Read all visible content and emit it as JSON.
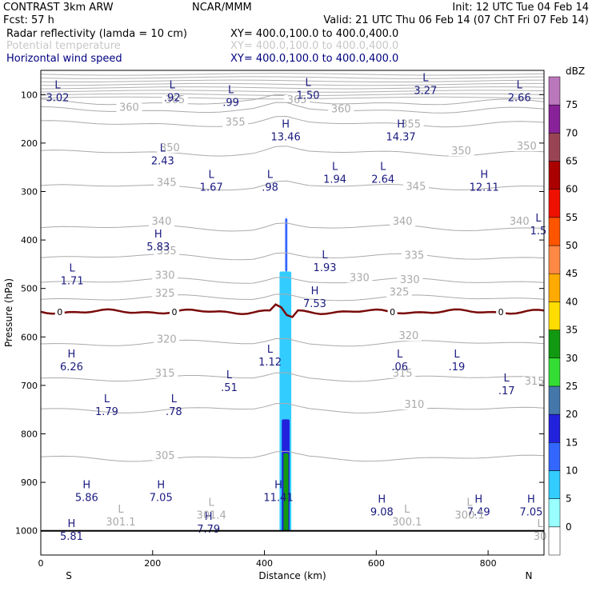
{
  "header": {
    "model": "CONTRAST  3km ARW",
    "org": "NCAR/MMM",
    "init": "Init: 12 UTC Tue 04 Feb 14",
    "fcst": "Fcst:   57 h",
    "valid": "Valid: 21 UTC Thu 06 Feb 14 (07 ChT Fri 07 Feb 14)"
  },
  "legend": [
    {
      "label": "Radar reflectivity (lamda = 10 cm)",
      "xy": "XY= 400.0,100.0 to 400.0,400.0",
      "color": "#000000"
    },
    {
      "label": "Potential temperature",
      "xy": "XY= 400.0,100.0 to 400.0,400.0",
      "color": "#c8c8c8"
    },
    {
      "label": "Horizontal wind speed",
      "xy": "XY= 400.0,100.0 to 400.0,400.0",
      "color": "#000080"
    }
  ],
  "chart_data": {
    "type": "heatmap",
    "xlabel": "Distance (km)",
    "ylabel": "Pressure (hPa)",
    "xlim": [
      0,
      900
    ],
    "ylim": [
      1050,
      50
    ],
    "x_ticks": [
      0,
      200,
      400,
      600,
      800
    ],
    "y_ticks": [
      100,
      200,
      300,
      400,
      500,
      600,
      700,
      800,
      900,
      1000
    ],
    "x_end_labels": {
      "left": "S",
      "right": "N"
    },
    "colorbar": {
      "title": "dBZ",
      "levels": [
        0,
        5,
        10,
        15,
        20,
        25,
        30,
        35,
        40,
        45,
        50,
        55,
        60,
        65,
        70,
        75
      ],
      "colors": [
        "#ffffff",
        "#99ffff",
        "#33ccff",
        "#3366ff",
        "#2222dd",
        "#4477aa",
        "#33dd33",
        "#119911",
        "#ffdd00",
        "#ffaa00",
        "#ff8844",
        "#ff5500",
        "#ee1100",
        "#aa0000",
        "#994455",
        "#882299",
        "#bb77bb"
      ]
    },
    "isentropes": [
      {
        "theta": 365,
        "p": 116,
        "labels": [
          {
            "x": 240,
            "p": 116
          },
          {
            "x": 458,
            "p": 116
          }
        ]
      },
      {
        "theta": 360,
        "p": 132,
        "labels": [
          {
            "x": 158,
            "p": 132
          },
          {
            "x": 537,
            "p": 135
          }
        ]
      },
      {
        "theta": 355,
        "p": 160,
        "labels": [
          {
            "x": 348,
            "p": 162
          },
          {
            "x": 662,
            "p": 166
          }
        ]
      },
      {
        "theta": 350,
        "p": 220,
        "labels": [
          {
            "x": 231,
            "p": 215
          },
          {
            "x": 752,
            "p": 222
          },
          {
            "x": 869,
            "p": 212
          }
        ]
      },
      {
        "theta": 345,
        "p": 290,
        "labels": [
          {
            "x": 225,
            "p": 287
          },
          {
            "x": 671,
            "p": 295
          }
        ]
      },
      {
        "theta": 340,
        "p": 375,
        "labels": [
          {
            "x": 216,
            "p": 367
          },
          {
            "x": 647,
            "p": 367
          },
          {
            "x": 856,
            "p": 367
          }
        ]
      },
      {
        "theta": 335,
        "p": 435,
        "labels": [
          {
            "x": 225,
            "p": 428
          },
          {
            "x": 668,
            "p": 437
          }
        ]
      },
      {
        "theta": 330,
        "p": 485,
        "labels": [
          {
            "x": 222,
            "p": 478
          },
          {
            "x": 570,
            "p": 483
          },
          {
            "x": 660,
            "p": 487
          }
        ]
      },
      {
        "theta": 325,
        "p": 520,
        "labels": [
          {
            "x": 222,
            "p": 515
          },
          {
            "x": 641,
            "p": 513
          }
        ]
      },
      {
        "theta": 320,
        "p": 613,
        "labels": [
          {
            "x": 225,
            "p": 610
          },
          {
            "x": 658,
            "p": 603
          }
        ]
      },
      {
        "theta": 315,
        "p": 685,
        "labels": [
          {
            "x": 222,
            "p": 680
          },
          {
            "x": 647,
            "p": 680
          },
          {
            "x": 883,
            "p": 697
          }
        ]
      },
      {
        "theta": 310,
        "p": 750,
        "labels": [
          {
            "x": 668,
            "p": 745
          }
        ]
      },
      {
        "theta": 305,
        "p": 850,
        "labels": [
          {
            "x": 222,
            "p": 850
          }
        ]
      }
    ],
    "freezing_level": {
      "label": "0",
      "p": 548,
      "label_x": [
        34,
        239,
        629,
        823
      ]
    },
    "reflectivity_cells": [
      {
        "x0": 427,
        "x1": 448,
        "p_top": 465,
        "p_bot": 1000,
        "dbz": 5
      },
      {
        "x0": 431,
        "x1": 445,
        "p_top": 770,
        "p_bot": 1000,
        "dbz": 15
      },
      {
        "x0": 434,
        "x1": 443,
        "p_top": 840,
        "p_bot": 1000,
        "dbz": 30
      },
      {
        "x0": 437,
        "x1": 441,
        "p_top": 355,
        "p_bot": 465,
        "dbz": 10
      }
    ],
    "extrema": [
      {
        "type": "L",
        "value": "3.02",
        "x": 30,
        "p": 107
      },
      {
        "type": "L",
        "value": ".92",
        "x": 235,
        "p": 107
      },
      {
        "type": "L",
        "value": ".99",
        "x": 340,
        "p": 117
      },
      {
        "type": "L",
        "value": "1.50",
        "x": 478,
        "p": 102
      },
      {
        "type": "L",
        "value": "3.27",
        "x": 688,
        "p": 92
      },
      {
        "type": "L",
        "value": "2.66",
        "x": 856,
        "p": 107
      },
      {
        "type": "H",
        "value": "13.46",
        "x": 438,
        "p": 188
      },
      {
        "type": "H",
        "value": "14.37",
        "x": 644,
        "p": 188
      },
      {
        "type": "L",
        "value": "2.43",
        "x": 218,
        "p": 237
      },
      {
        "type": "L",
        "value": "1.67",
        "x": 305,
        "p": 292
      },
      {
        "type": "L",
        "value": ".98",
        "x": 410,
        "p": 292
      },
      {
        "type": "L",
        "value": "1.94",
        "x": 526,
        "p": 275
      },
      {
        "type": "L",
        "value": "2.64",
        "x": 612,
        "p": 275
      },
      {
        "type": "H",
        "value": "12.11",
        "x": 793,
        "p": 292
      },
      {
        "type": "H",
        "value": "5.83",
        "x": 210,
        "p": 415
      },
      {
        "type": "L",
        "value": "1.5",
        "x": 890,
        "p": 382
      },
      {
        "type": "L",
        "value": "1.93",
        "x": 508,
        "p": 458
      },
      {
        "type": "L",
        "value": "1.71",
        "x": 56,
        "p": 485
      },
      {
        "type": "H",
        "value": "7.53",
        "x": 490,
        "p": 532
      },
      {
        "type": "L",
        "value": "1.12",
        "x": 410,
        "p": 652
      },
      {
        "type": "H",
        "value": "6.26",
        "x": 55,
        "p": 662
      },
      {
        "type": "L",
        "value": ".06",
        "x": 642,
        "p": 662
      },
      {
        "type": "L",
        "value": ".19",
        "x": 744,
        "p": 662
      },
      {
        "type": "L",
        "value": ".51",
        "x": 337,
        "p": 705
      },
      {
        "type": "L",
        "value": ".17",
        "x": 833,
        "p": 712
      },
      {
        "type": "L",
        "value": "1.79",
        "x": 118,
        "p": 755
      },
      {
        "type": "L",
        "value": ".78",
        "x": 238,
        "p": 755
      },
      {
        "type": "H",
        "value": "5.86",
        "x": 82,
        "p": 932
      },
      {
        "type": "H",
        "value": "7.05",
        "x": 215,
        "p": 932
      },
      {
        "type": "H",
        "value": "11.41",
        "x": 425,
        "p": 932
      },
      {
        "type": "H",
        "value": "9.08",
        "x": 610,
        "p": 962
      },
      {
        "type": "H",
        "value": "7.49",
        "x": 783,
        "p": 962
      },
      {
        "type": "H",
        "value": "7.05",
        "x": 877,
        "p": 962
      },
      {
        "type": "H",
        "value": "5.81",
        "x": 55,
        "p": 1012
      },
      {
        "type": "H",
        "value": "7.79",
        "x": 300,
        "p": 997
      }
    ],
    "theta_extrema": [
      {
        "type": "L",
        "value": "301.1",
        "x": 143,
        "p": 982
      },
      {
        "type": "L",
        "value": "301.4",
        "x": 305,
        "p": 968
      },
      {
        "type": "L",
        "value": "300.1",
        "x": 655,
        "p": 982
      },
      {
        "type": "L",
        "value": "300.1",
        "x": 767,
        "p": 968
      },
      {
        "type": "L",
        "value": "30",
        "x": 893,
        "p": 1012
      }
    ]
  }
}
